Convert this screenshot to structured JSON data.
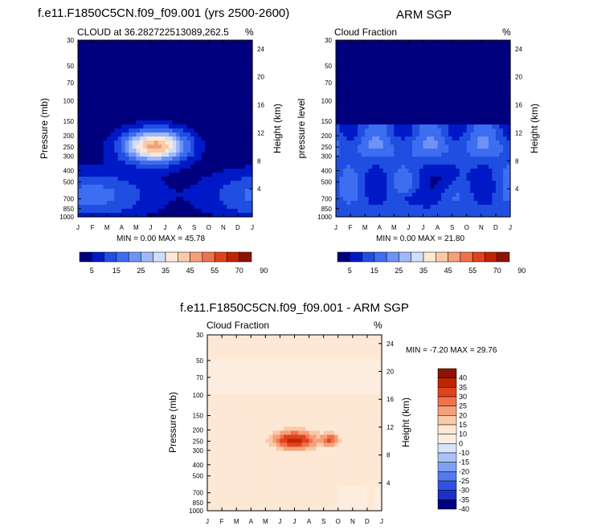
{
  "figure": {
    "left_title": "f.e11.F1850C5CN.f09_f09.001 (yrs 2500-2600)",
    "right_title": "ARM SGP",
    "bottom_title": "f.e11.F1850C5CN.f09_f09.001 - ARM SGP"
  },
  "chart_data": [
    {
      "type": "heatmap",
      "id": "model",
      "subtitle": "CLOUD at 36.282722513089,262.5",
      "units": "%",
      "ylabel": "Pressure (mb)",
      "ylabel_right": "Height (km)",
      "x_ticks": [
        "J",
        "F",
        "M",
        "A",
        "M",
        "J",
        "J",
        "A",
        "S",
        "O",
        "N",
        "D",
        "J"
      ],
      "y_ticks": [
        "30",
        "50",
        "70",
        "100",
        "150",
        "200",
        "250",
        "300",
        "400",
        "500",
        "700",
        "850",
        "1000"
      ],
      "y_ticks_right": [
        "24",
        "20",
        "16",
        "12",
        "8",
        "4"
      ],
      "stats": "MIN =  0.00 MAX = 45.78",
      "colorbar_labels": [
        "5",
        "15",
        "25",
        "35",
        "45",
        "55",
        "70",
        "90"
      ],
      "colors": [
        "#00007f",
        "#0019c7",
        "#1f4ee0",
        "#3d6df0",
        "#6e93f5",
        "#9fb8f8",
        "#cfdefb",
        "#fde8d5",
        "#f9c9a8",
        "#f5a07b",
        "#f0724c",
        "#e0431c",
        "#c02400",
        "#8b1400"
      ],
      "peak": {
        "month": 5.0,
        "pressure": 240,
        "value": 45.78
      }
    },
    {
      "type": "heatmap",
      "id": "obs",
      "subtitle": "Cloud Fraction",
      "units": "%",
      "ylabel": "pressure level",
      "ylabel_right": "Height (km)",
      "x_ticks": [
        "J",
        "F",
        "M",
        "A",
        "M",
        "J",
        "J",
        "A",
        "S",
        "O",
        "N",
        "D",
        "J"
      ],
      "y_ticks": [
        "30",
        "50",
        "70",
        "100",
        "150",
        "200",
        "250",
        "300",
        "400",
        "500",
        "700",
        "850",
        "1000"
      ],
      "y_ticks_right": [
        "24",
        "20",
        "16",
        "12",
        "8",
        "4"
      ],
      "stats": "MIN =  0.00 MAX = 21.80",
      "colorbar_labels": [
        "5",
        "15",
        "25",
        "35",
        "45",
        "55",
        "70",
        "90"
      ],
      "colors": [
        "#00007f",
        "#0019c7",
        "#1f4ee0",
        "#3d6df0",
        "#6e93f5",
        "#9fb8f8",
        "#cfdefb",
        "#fde8d5",
        "#f9c9a8",
        "#f5a07b",
        "#f0724c",
        "#e0431c",
        "#c02400",
        "#8b1400"
      ]
    },
    {
      "type": "heatmap",
      "id": "diff",
      "subtitle": "Cloud Fraction",
      "units": "%",
      "ylabel": "Pressure (mb)",
      "ylabel_right": "Height (km)",
      "x_ticks": [
        "J",
        "F",
        "M",
        "A",
        "M",
        "J",
        "J",
        "A",
        "S",
        "O",
        "N",
        "D",
        "J"
      ],
      "y_ticks": [
        "30",
        "50",
        "70",
        "100",
        "150",
        "200",
        "250",
        "300",
        "400",
        "500",
        "700",
        "850",
        "1000"
      ],
      "y_ticks_right": [
        "24",
        "20",
        "16",
        "12",
        "8",
        "4"
      ],
      "stats": "MIN = -7.20 MAX = 29.76",
      "colorbar_labels": [
        "40",
        "35",
        "30",
        "25",
        "20",
        "15",
        "10",
        "0",
        "-10",
        "-15",
        "-20",
        "-25",
        "-30",
        "-35",
        "-40"
      ],
      "colors": [
        "#8b1400",
        "#c02400",
        "#e0431c",
        "#f0724c",
        "#f5a07b",
        "#f9c9a8",
        "#fde8d5",
        "#fdeddf",
        "#d5e6fb",
        "#aac3f6",
        "#7fa0f2",
        "#5579ec",
        "#2f52e0",
        "#1a30c4",
        "#00007f"
      ]
    }
  ]
}
